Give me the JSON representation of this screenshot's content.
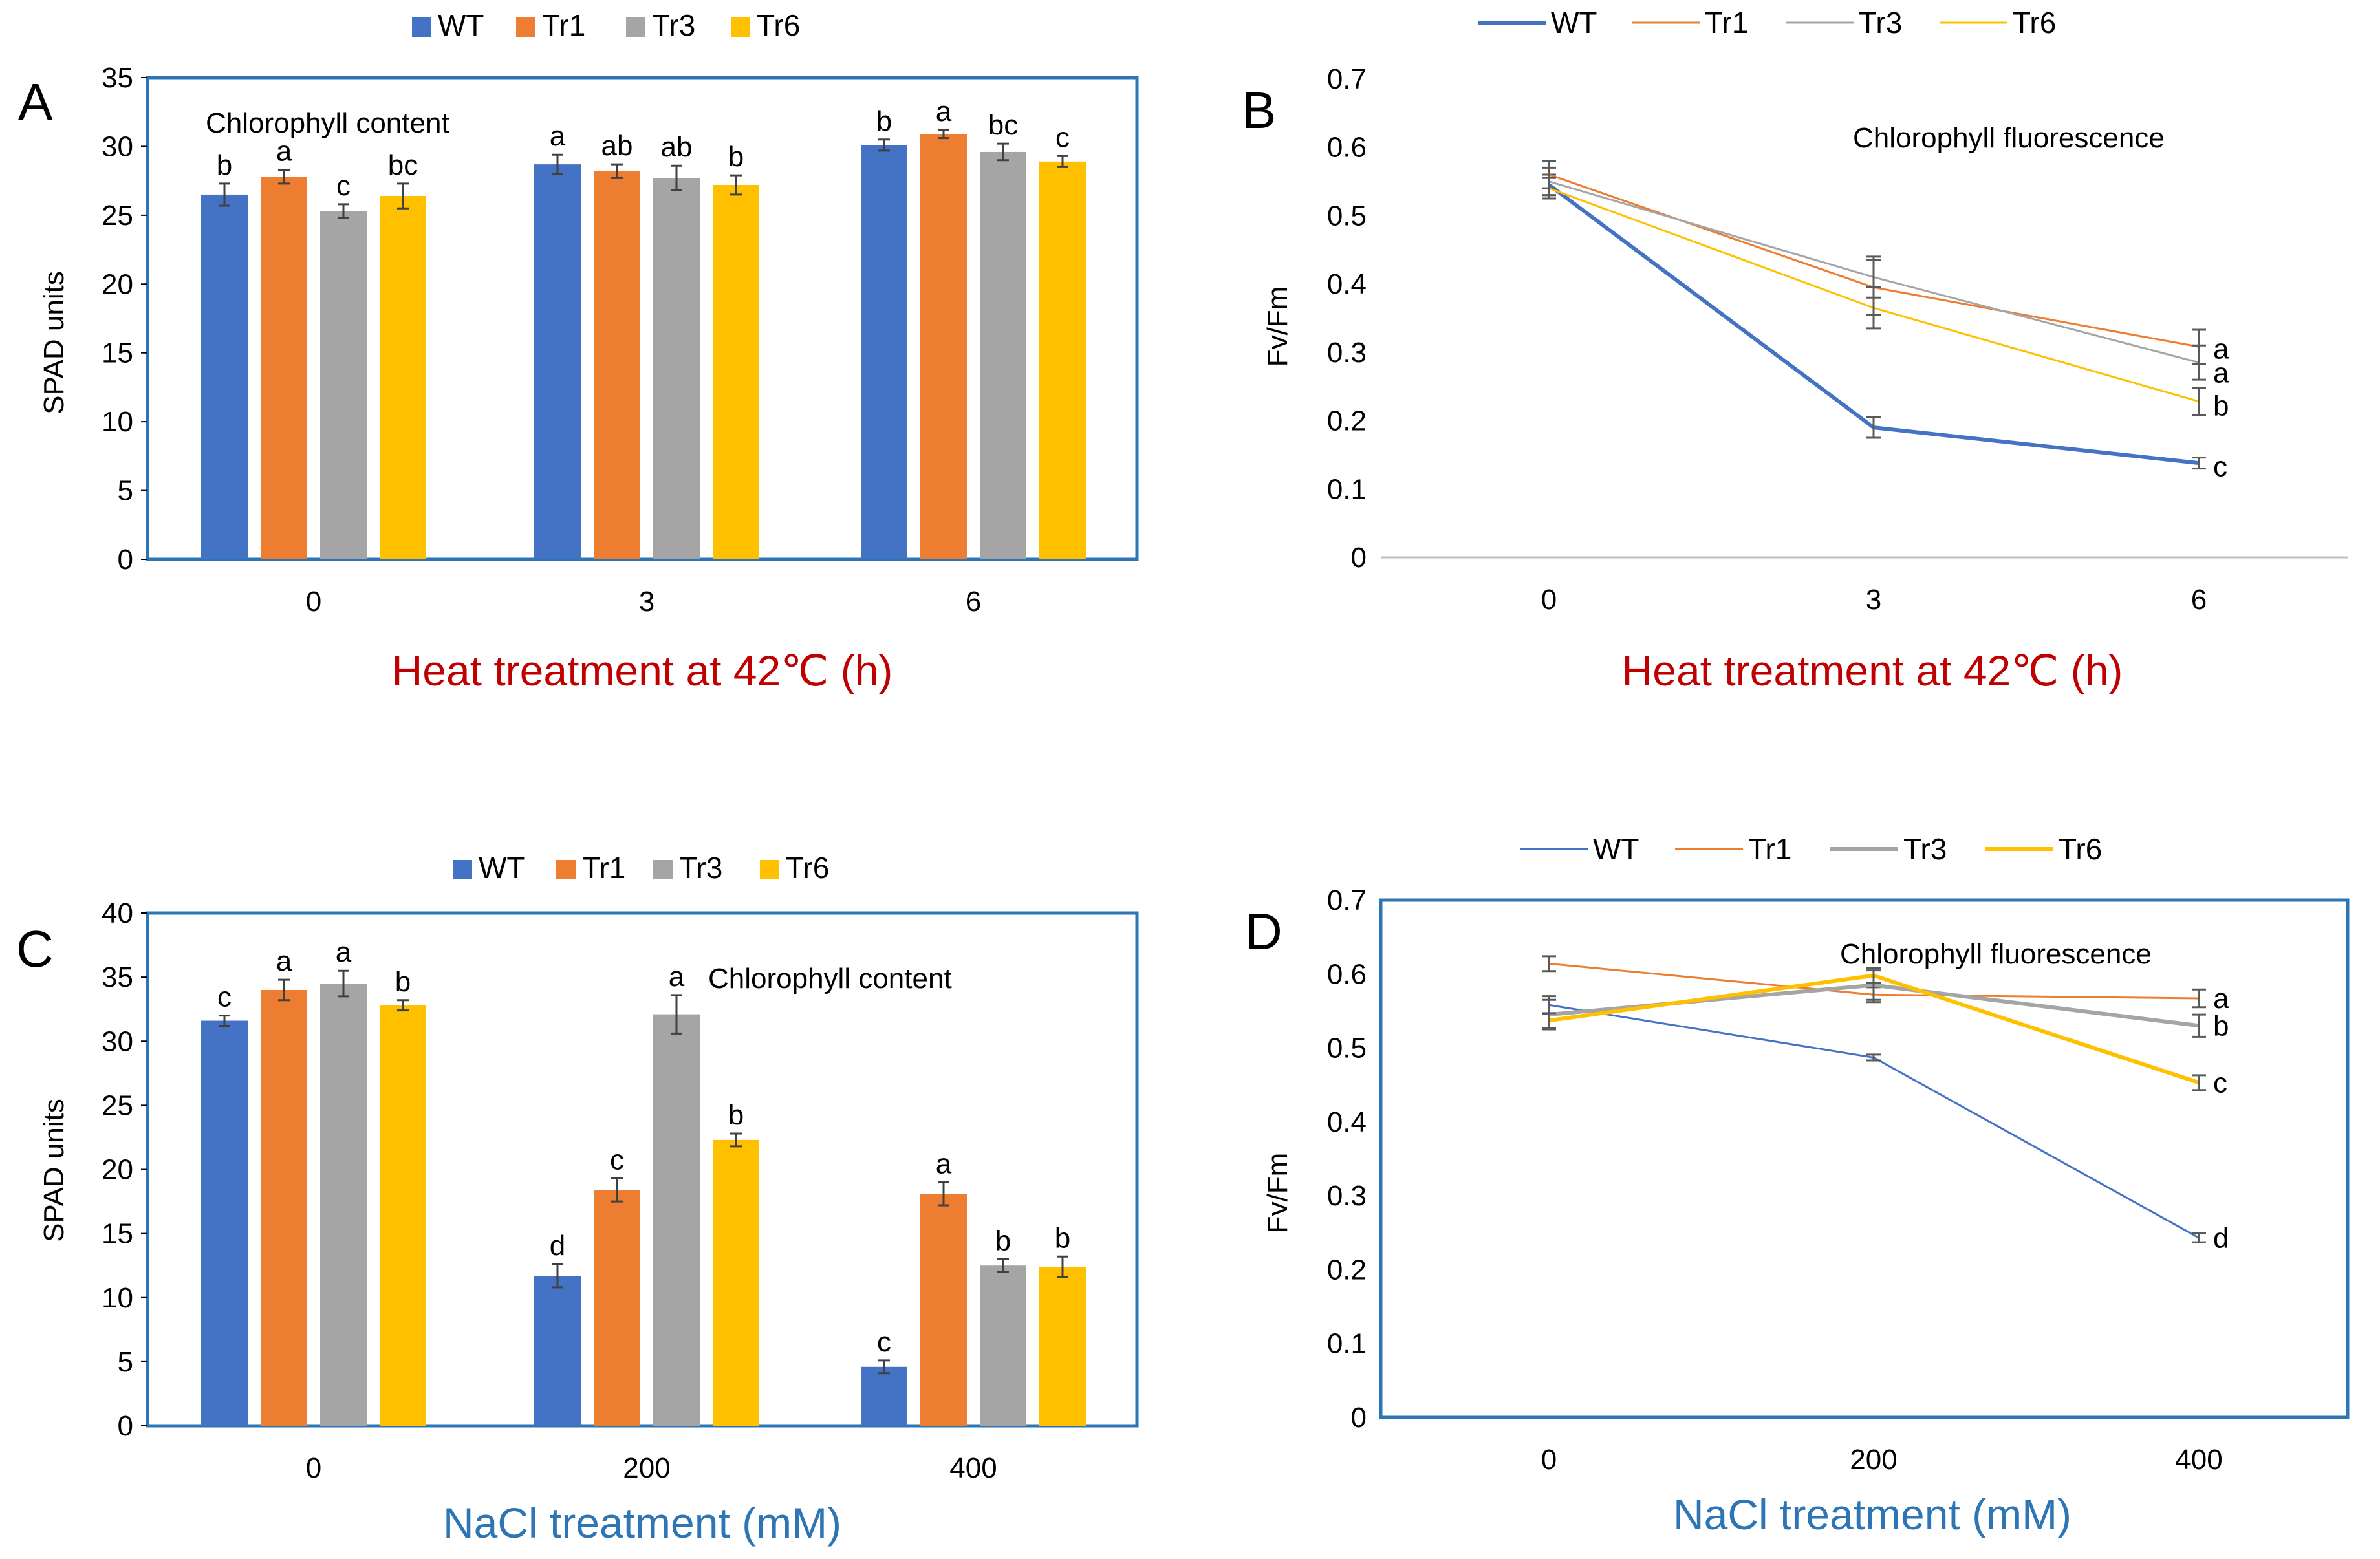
{
  "figure": {
    "colors": {
      "WT": "#4472C4",
      "Tr1": "#ED7D31",
      "Tr3": "#A5A5A5",
      "Tr6": "#FFC000",
      "axis_box": "#2E75B6",
      "heat_label": "#C00000",
      "nacl_label": "#2E75B6"
    }
  },
  "chart_data": [
    {
      "id": "A",
      "panel_letter": "A",
      "type": "bar",
      "title": "Chlorophyll content",
      "ylabel": "SPAD units",
      "xlabel": "Heat treatment at 42℃ (h)",
      "categories": [
        "0",
        "3",
        "6"
      ],
      "ylim": [
        0,
        35
      ],
      "yticks": [
        0,
        5,
        10,
        15,
        20,
        25,
        30,
        35
      ],
      "legend": "top",
      "series": [
        {
          "name": "WT",
          "values": [
            26.5,
            28.7,
            30.1
          ],
          "errors": [
            0.8,
            0.7,
            0.4
          ],
          "letters": [
            "b",
            "a",
            "b"
          ]
        },
        {
          "name": "Tr1",
          "values": [
            27.8,
            28.2,
            30.9
          ],
          "errors": [
            0.5,
            0.5,
            0.3
          ],
          "letters": [
            "a",
            "ab",
            "a"
          ]
        },
        {
          "name": "Tr3",
          "values": [
            25.3,
            27.7,
            29.6
          ],
          "errors": [
            0.5,
            0.9,
            0.6
          ],
          "letters": [
            "c",
            "ab",
            "bc"
          ]
        },
        {
          "name": "Tr6",
          "values": [
            26.4,
            27.2,
            28.9
          ],
          "errors": [
            0.9,
            0.7,
            0.4
          ],
          "letters": [
            "bc",
            "b",
            "c"
          ]
        }
      ]
    },
    {
      "id": "B",
      "panel_letter": "B",
      "type": "line",
      "title": "Chlorophyll fluorescence",
      "ylabel": "Fv/Fm",
      "xlabel": "Heat treatment at 42℃ (h)",
      "categories": [
        "0",
        "3",
        "6"
      ],
      "ylim": [
        0,
        0.7
      ],
      "yticks": [
        "0",
        "0.1",
        "0.2",
        "0.3",
        "0.4",
        "0.5",
        "0.6",
        "0.7"
      ],
      "legend": "top",
      "series": [
        {
          "name": "WT",
          "values": [
            0.545,
            0.19,
            0.138
          ],
          "errors": [
            0.015,
            0.015,
            0.008
          ],
          "width": 6
        },
        {
          "name": "Tr1",
          "values": [
            0.56,
            0.395,
            0.308
          ],
          "errors": [
            0.02,
            0.04,
            0.025
          ],
          "width": 3
        },
        {
          "name": "Tr3",
          "values": [
            0.55,
            0.41,
            0.285
          ],
          "errors": [
            0.02,
            0.03,
            0.025
          ],
          "width": 3
        },
        {
          "name": "Tr6",
          "values": [
            0.54,
            0.365,
            0.228
          ],
          "errors": [
            0.015,
            0.03,
            0.02
          ],
          "width": 3
        }
      ],
      "end_letters": [
        {
          "label": "a",
          "value": 0.305
        },
        {
          "label": "a",
          "value": 0.27
        },
        {
          "label": "b",
          "value": 0.222
        },
        {
          "label": "c",
          "value": 0.133
        }
      ]
    },
    {
      "id": "C",
      "panel_letter": "C",
      "type": "bar",
      "title": "Chlorophyll content",
      "ylabel": "SPAD units",
      "xlabel": "NaCl treatment (mM)",
      "categories": [
        "0",
        "200",
        "400"
      ],
      "ylim": [
        0,
        40
      ],
      "yticks": [
        0,
        5,
        10,
        15,
        20,
        25,
        30,
        35,
        40
      ],
      "legend": "top",
      "series": [
        {
          "name": "WT",
          "values": [
            31.6,
            11.7,
            4.6
          ],
          "errors": [
            0.4,
            0.9,
            0.5
          ],
          "letters": [
            "c",
            "d",
            "c"
          ]
        },
        {
          "name": "Tr1",
          "values": [
            34.0,
            18.4,
            18.1
          ],
          "errors": [
            0.8,
            0.9,
            0.9
          ],
          "letters": [
            "a",
            "c",
            "a"
          ]
        },
        {
          "name": "Tr3",
          "values": [
            34.5,
            32.1,
            12.5
          ],
          "errors": [
            1.0,
            1.5,
            0.5
          ],
          "letters": [
            "a",
            "a",
            "b"
          ]
        },
        {
          "name": "Tr6",
          "values": [
            32.8,
            22.3,
            12.4
          ],
          "errors": [
            0.4,
            0.5,
            0.8
          ],
          "letters": [
            "b",
            "b",
            "b"
          ]
        }
      ]
    },
    {
      "id": "D",
      "panel_letter": "D",
      "type": "line",
      "title": "Chlorophyll fluorescence",
      "ylabel": "Fv/Fm",
      "xlabel": "NaCl treatment (mM)",
      "categories": [
        "0",
        "200",
        "400"
      ],
      "ylim": [
        0,
        0.7
      ],
      "yticks": [
        "0",
        "0.1",
        "0.2",
        "0.3",
        "0.4",
        "0.5",
        "0.6",
        "0.7"
      ],
      "legend": "top",
      "series": [
        {
          "name": "WT",
          "values": [
            0.558,
            0.487,
            0.243
          ],
          "errors": [
            0.012,
            0.004,
            0.006
          ],
          "width": 3
        },
        {
          "name": "Tr1",
          "values": [
            0.614,
            0.572,
            0.567
          ],
          "errors": [
            0.01,
            0.01,
            0.012
          ],
          "width": 3
        },
        {
          "name": "Tr3",
          "values": [
            0.545,
            0.585,
            0.53
          ],
          "errors": [
            0.02,
            0.02,
            0.015
          ],
          "width": 6
        },
        {
          "name": "Tr6",
          "values": [
            0.537,
            0.598,
            0.453
          ],
          "errors": [
            0.01,
            0.01,
            0.01
          ],
          "width": 6
        }
      ],
      "end_letters": [
        {
          "label": "a",
          "value": 0.567
        },
        {
          "label": "b",
          "value": 0.53
        },
        {
          "label": "c",
          "value": 0.453
        },
        {
          "label": "d",
          "value": 0.243
        }
      ]
    }
  ]
}
